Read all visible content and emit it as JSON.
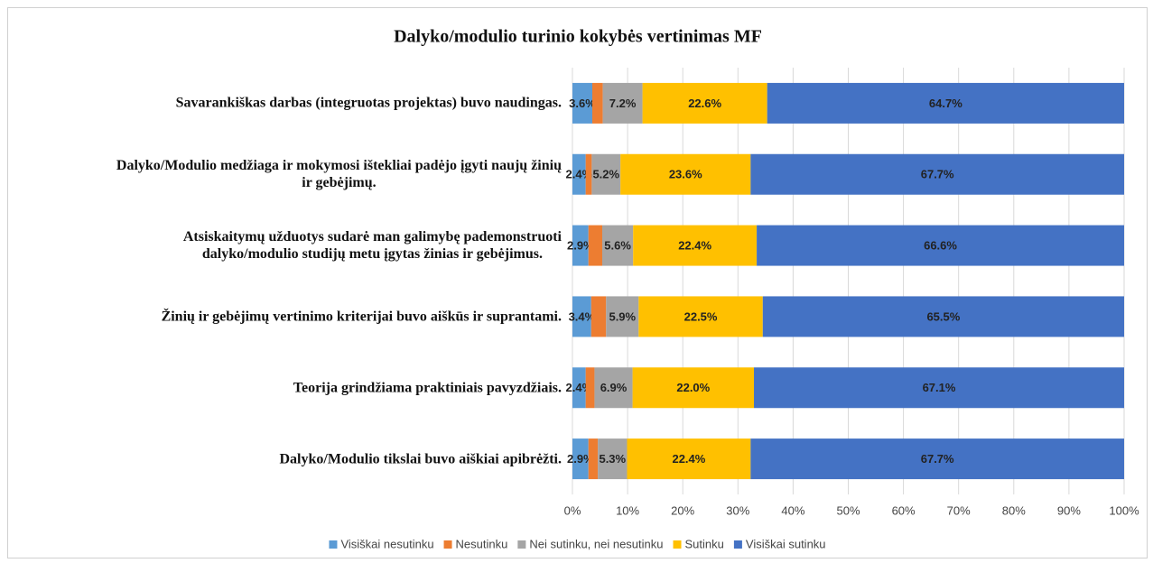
{
  "chart_data": {
    "type": "stacked-bar-horizontal",
    "title": "Dalyko/modulio  turinio kokybės vertinimas MF",
    "categories": [
      "Savarankiškas darbas (integruotas projektas) buvo naudingas.",
      "Dalyko/Modulio medžiaga ir mokymosi ištekliai padėjo įgyti naujų žinių\nir gebėjimų.",
      "Atsiskaitymų  užduotys sudarė man galimybę pademonstruoti\ndalyko/modulio studijų metu įgytas žinias ir gebėjimus.",
      "Žinių ir gebėjimų vertinimo kriterijai buvo aiškūs ir suprantami.",
      "Teorija grindžiama praktiniais pavyzdžiais.",
      "Dalyko/Modulio tikslai buvo aiškiai apibrėžti."
    ],
    "series": [
      {
        "name": "Visiškai nesutinku",
        "color": "#5b9bd5",
        "values": [
          3.6,
          2.4,
          2.9,
          3.4,
          2.4,
          2.9
        ],
        "value_labels": [
          "3.6%",
          "2.4%",
          "2.9%",
          "3.4%",
          "2.4%",
          "2.9%"
        ]
      },
      {
        "name": "Nesutinku",
        "color": "#ed7d31",
        "values": [
          1.9,
          1.1,
          2.5,
          2.7,
          1.6,
          1.7
        ]
      },
      {
        "name": "Nei sutinku, nei nesutinku",
        "color": "#a5a5a5",
        "values": [
          7.2,
          5.2,
          5.6,
          5.9,
          6.9,
          5.3
        ],
        "value_labels": [
          "7.2%",
          "5.2%",
          "5.6%",
          "5.9%",
          "6.9%",
          "5.3%"
        ]
      },
      {
        "name": "Sutinku",
        "color": "#ffc000",
        "values": [
          22.6,
          23.6,
          22.4,
          22.5,
          22.0,
          22.4
        ],
        "value_labels": [
          "22.6%",
          "23.6%",
          "22.4%",
          "22.5%",
          "22.0%",
          "22.4%"
        ]
      },
      {
        "name": "Visiškai sutinku",
        "color": "#4472c4",
        "values": [
          64.7,
          67.7,
          66.6,
          65.5,
          67.1,
          67.7
        ],
        "value_labels": [
          "64.7%",
          "67.7%",
          "66.6%",
          "65.5%",
          "67.1%",
          "67.7%"
        ]
      }
    ],
    "xlim": [
      0,
      100
    ],
    "xticks": [
      {
        "value": 0,
        "label": "0%"
      },
      {
        "value": 10,
        "label": "10%"
      },
      {
        "value": 20,
        "label": "20%"
      },
      {
        "value": 30,
        "label": "30%"
      },
      {
        "value": 40,
        "label": "40%"
      },
      {
        "value": 50,
        "label": "50%"
      },
      {
        "value": 60,
        "label": "60%"
      },
      {
        "value": 70,
        "label": "70%"
      },
      {
        "value": 80,
        "label": "80%"
      },
      {
        "value": 90,
        "label": "90%"
      },
      {
        "value": 100,
        "label": "100%"
      }
    ],
    "grid": true,
    "legend": "bottom"
  }
}
